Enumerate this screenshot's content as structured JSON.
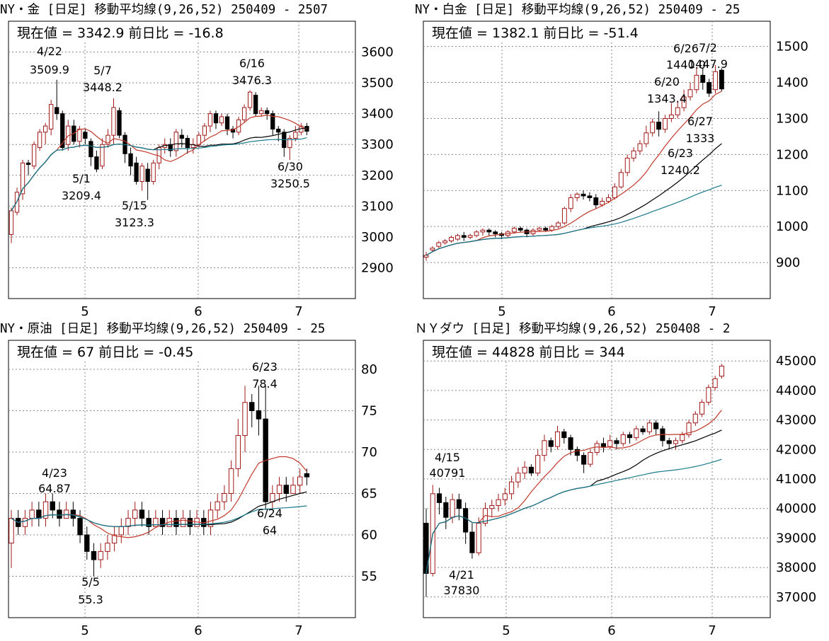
{
  "chart_data": [
    {
      "type": "candlestick",
      "header": "NY・金 [日足] 移動平均線(9,26,52)  250409 - 2507",
      "info": "現在値 = 3342.9  前日比 = -16.8",
      "months": [
        "5",
        "6",
        "7"
      ],
      "yticks": [
        2900,
        3000,
        3100,
        3200,
        3300,
        3400,
        3500,
        3600
      ],
      "ylim": [
        2800,
        3700
      ],
      "annotations": [
        {
          "date": "4/22",
          "value": "3509.9"
        },
        {
          "date": "5/7",
          "value": "3448.2"
        },
        {
          "date": "6/16",
          "value": "3476.3"
        },
        {
          "date": "5/1",
          "value": "3209.4"
        },
        {
          "date": "5/15",
          "value": "3123.3"
        },
        {
          "date": "6/30",
          "value": "3250.5"
        }
      ],
      "ma": {
        "colors": [
          "#c0392b",
          "#000000",
          "#1a7a8c"
        ]
      },
      "candles": [
        [
          3008,
          3085,
          2980,
          3095
        ],
        [
          3080,
          3145,
          3070,
          3160
        ],
        [
          3140,
          3240,
          3120,
          3250
        ],
        [
          3240,
          3235,
          3200,
          3250
        ],
        [
          3230,
          3300,
          3220,
          3310
        ],
        [
          3290,
          3340,
          3280,
          3350
        ],
        [
          3340,
          3360,
          3300,
          3370
        ],
        [
          3350,
          3430,
          3330,
          3445
        ],
        [
          3420,
          3400,
          3380,
          3510
        ],
        [
          3400,
          3290,
          3280,
          3410
        ],
        [
          3300,
          3360,
          3280,
          3380
        ],
        [
          3360,
          3310,
          3300,
          3380
        ],
        [
          3310,
          3350,
          3290,
          3360
        ],
        [
          3340,
          3320,
          3300,
          3350
        ],
        [
          3310,
          3260,
          3230,
          3320
        ],
        [
          3260,
          3220,
          3210,
          3280
        ],
        [
          3230,
          3300,
          3220,
          3320
        ],
        [
          3300,
          3330,
          3290,
          3350
        ],
        [
          3330,
          3420,
          3300,
          3450
        ],
        [
          3410,
          3330,
          3320,
          3420
        ],
        [
          3330,
          3270,
          3240,
          3340
        ],
        [
          3270,
          3230,
          3200,
          3290
        ],
        [
          3240,
          3180,
          3170,
          3260
        ],
        [
          3180,
          3230,
          3150,
          3240
        ],
        [
          3220,
          3180,
          3120,
          3240
        ],
        [
          3180,
          3240,
          3170,
          3250
        ],
        [
          3240,
          3290,
          3220,
          3300
        ],
        [
          3290,
          3300,
          3270,
          3320
        ],
        [
          3300,
          3280,
          3260,
          3320
        ],
        [
          3280,
          3340,
          3260,
          3350
        ],
        [
          3330,
          3320,
          3290,
          3350
        ],
        [
          3320,
          3290,
          3270,
          3330
        ],
        [
          3290,
          3300,
          3270,
          3320
        ],
        [
          3300,
          3330,
          3290,
          3340
        ],
        [
          3330,
          3360,
          3310,
          3370
        ],
        [
          3360,
          3400,
          3340,
          3410
        ],
        [
          3400,
          3370,
          3350,
          3410
        ],
        [
          3370,
          3390,
          3360,
          3400
        ],
        [
          3390,
          3350,
          3330,
          3400
        ],
        [
          3350,
          3340,
          3320,
          3360
        ],
        [
          3340,
          3380,
          3330,
          3390
        ],
        [
          3380,
          3420,
          3370,
          3430
        ],
        [
          3420,
          3470,
          3410,
          3476
        ],
        [
          3460,
          3400,
          3390,
          3470
        ],
        [
          3400,
          3410,
          3390,
          3420
        ],
        [
          3410,
          3400,
          3380,
          3420
        ],
        [
          3400,
          3350,
          3330,
          3410
        ],
        [
          3350,
          3340,
          3310,
          3360
        ],
        [
          3340,
          3290,
          3260,
          3350
        ],
        [
          3290,
          3320,
          3250,
          3330
        ],
        [
          3320,
          3340,
          3310,
          3360
        ],
        [
          3340,
          3360,
          3330,
          3370
        ],
        [
          3359,
          3343,
          3330,
          3370
        ]
      ]
    },
    {
      "type": "candlestick",
      "header": "NY・白金 [日足] 移動平均線(9,26,52)  250409 - 25",
      "info": "現在値 = 1382.1  前日比 = -51.4",
      "months": [
        "5",
        "6",
        "7"
      ],
      "yticks": [
        900,
        1000,
        1100,
        1200,
        1300,
        1400,
        1500
      ],
      "ylim": [
        800,
        1570
      ],
      "annotations": [
        {
          "date": "7/2",
          "value": "1447.9"
        },
        {
          "date": "6/26",
          "value": "1440.0"
        },
        {
          "date": "6/20",
          "value": "1343.4"
        },
        {
          "date": "6/27",
          "value": "1333"
        },
        {
          "date": "6/23",
          "value": "1240.2"
        }
      ],
      "ma": {
        "colors": [
          "#c0392b",
          "#000000",
          "#1a7a8c"
        ]
      },
      "candles": [
        [
          915,
          920,
          905,
          930
        ],
        [
          935,
          940,
          930,
          945
        ],
        [
          945,
          955,
          940,
          960
        ],
        [
          955,
          960,
          950,
          965
        ],
        [
          960,
          970,
          955,
          975
        ],
        [
          965,
          975,
          960,
          980
        ],
        [
          975,
          970,
          960,
          985
        ],
        [
          970,
          975,
          965,
          980
        ],
        [
          975,
          985,
          970,
          990
        ],
        [
          985,
          990,
          975,
          995
        ],
        [
          990,
          985,
          975,
          995
        ],
        [
          985,
          980,
          970,
          990
        ],
        [
          980,
          975,
          965,
          985
        ],
        [
          975,
          985,
          970,
          990
        ],
        [
          985,
          995,
          980,
          1000
        ],
        [
          995,
          990,
          985,
          1000
        ],
        [
          990,
          980,
          970,
          995
        ],
        [
          980,
          990,
          975,
          995
        ],
        [
          990,
          995,
          985,
          1000
        ],
        [
          995,
          990,
          985,
          1000
        ],
        [
          990,
          1000,
          985,
          1005
        ],
        [
          1000,
          1010,
          995,
          1015
        ],
        [
          1010,
          1050,
          1005,
          1055
        ],
        [
          1050,
          1080,
          1040,
          1090
        ],
        [
          1080,
          1090,
          1070,
          1095
        ],
        [
          1090,
          1085,
          1075,
          1100
        ],
        [
          1085,
          1080,
          1070,
          1095
        ],
        [
          1080,
          1060,
          1050,
          1090
        ],
        [
          1060,
          1070,
          1055,
          1080
        ],
        [
          1070,
          1080,
          1065,
          1090
        ],
        [
          1080,
          1110,
          1075,
          1120
        ],
        [
          1110,
          1150,
          1105,
          1160
        ],
        [
          1150,
          1190,
          1140,
          1200
        ],
        [
          1190,
          1210,
          1180,
          1220
        ],
        [
          1210,
          1230,
          1200,
          1240
        ],
        [
          1230,
          1260,
          1220,
          1280
        ],
        [
          1260,
          1290,
          1250,
          1300
        ],
        [
          1290,
          1270,
          1250,
          1320
        ],
        [
          1270,
          1300,
          1260,
          1310
        ],
        [
          1300,
          1310,
          1290,
          1343
        ],
        [
          1310,
          1330,
          1300,
          1350
        ],
        [
          1330,
          1360,
          1320,
          1380
        ],
        [
          1360,
          1380,
          1350,
          1400
        ],
        [
          1380,
          1420,
          1370,
          1440
        ],
        [
          1420,
          1400,
          1380,
          1440
        ],
        [
          1400,
          1370,
          1360,
          1410
        ],
        [
          1380,
          1430,
          1370,
          1448
        ],
        [
          1434,
          1382,
          1375,
          1440
        ]
      ]
    },
    {
      "type": "candlestick",
      "header": "NY・原油 [日足] 移動平均線(9,26,52)  250409 - 25",
      "info": "現在値 = 67  前日比 = -0.45",
      "months": [
        "5",
        "6",
        "7"
      ],
      "yticks": [
        55,
        60,
        65,
        70,
        75,
        80
      ],
      "ylim": [
        50,
        83.5
      ],
      "annotations": [
        {
          "date": "6/23",
          "value": "78.4"
        },
        {
          "date": "4/23",
          "value": "64.87"
        },
        {
          "date": "5/5",
          "value": "55.3"
        },
        {
          "date": "6/24",
          "value": "64"
        }
      ],
      "ma": {
        "colors": [
          "#c0392b",
          "#000000",
          "#1a7a8c"
        ]
      },
      "candles": [
        [
          59,
          62,
          56,
          63
        ],
        [
          62,
          61,
          60,
          63
        ],
        [
          61,
          62,
          60,
          63
        ],
        [
          62,
          63,
          61,
          64
        ],
        [
          63,
          62,
          61,
          64
        ],
        [
          62,
          64,
          61,
          65
        ],
        [
          64,
          63,
          62,
          65
        ],
        [
          63,
          62,
          61,
          64
        ],
        [
          62,
          63,
          62,
          64
        ],
        [
          63,
          62,
          61,
          64
        ],
        [
          62,
          60,
          59,
          63
        ],
        [
          60,
          58,
          57,
          61
        ],
        [
          58,
          57,
          55,
          59
        ],
        [
          57,
          58,
          56,
          59
        ],
        [
          58,
          59,
          57,
          60
        ],
        [
          59,
          60,
          58,
          61
        ],
        [
          60,
          61,
          59,
          62
        ],
        [
          61,
          62,
          60,
          63
        ],
        [
          62,
          63,
          61,
          64
        ],
        [
          63,
          62,
          61,
          64
        ],
        [
          62,
          61,
          60,
          63
        ],
        [
          61,
          62,
          61,
          63
        ],
        [
          62,
          61,
          60,
          63
        ],
        [
          61,
          62,
          61,
          63
        ],
        [
          62,
          61,
          60,
          63
        ],
        [
          61,
          62,
          61,
          63
        ],
        [
          62,
          61,
          60,
          63
        ],
        [
          61,
          62,
          61,
          63
        ],
        [
          62,
          61,
          60,
          63
        ],
        [
          61,
          63,
          60,
          64
        ],
        [
          63,
          64,
          62,
          65
        ],
        [
          64,
          65,
          63,
          66
        ],
        [
          65,
          68,
          64,
          69
        ],
        [
          68,
          72,
          67,
          74
        ],
        [
          72,
          76,
          70,
          78
        ],
        [
          76,
          75,
          73,
          77
        ],
        [
          75,
          74,
          72,
          78
        ],
        [
          74,
          64,
          63,
          78
        ],
        [
          64,
          65,
          63,
          66
        ],
        [
          65,
          66,
          64,
          67
        ],
        [
          66,
          65,
          64,
          67
        ],
        [
          65,
          66,
          65,
          67
        ],
        [
          66,
          67,
          65,
          68
        ],
        [
          67.4,
          67,
          66,
          68
        ]
      ]
    },
    {
      "type": "candlestick",
      "header": "ＮＹダウ [日足] 移動平均線(9,26,52)  250408 - 2",
      "info": "現在値 = 44828  前日比 = 344",
      "months": [
        "5",
        "6",
        "7"
      ],
      "yticks": [
        37000,
        38000,
        39000,
        40000,
        41000,
        42000,
        43000,
        44000,
        45000
      ],
      "ylim": [
        36300,
        45700
      ],
      "annotations": [
        {
          "date": "4/15",
          "value": "40791"
        },
        {
          "date": "4/21",
          "value": "37830"
        }
      ],
      "ma": {
        "colors": [
          "#c0392b",
          "#000000",
          "#1a7a8c"
        ]
      },
      "candles": [
        [
          39500,
          37800,
          37000,
          40000
        ],
        [
          37800,
          40500,
          37700,
          40800
        ],
        [
          40500,
          40200,
          39800,
          40700
        ],
        [
          40200,
          39700,
          39300,
          40400
        ],
        [
          39700,
          40300,
          39500,
          40500
        ],
        [
          40300,
          40000,
          39600,
          40500
        ],
        [
          40000,
          39200,
          38800,
          40200
        ],
        [
          39200,
          38500,
          38300,
          39500
        ],
        [
          38500,
          39500,
          38400,
          39700
        ],
        [
          39500,
          40000,
          39400,
          40200
        ],
        [
          40000,
          40100,
          39700,
          40300
        ],
        [
          40100,
          40300,
          39900,
          40500
        ],
        [
          40300,
          40500,
          40100,
          40700
        ],
        [
          40500,
          40900,
          40300,
          41100
        ],
        [
          40900,
          41200,
          40700,
          41400
        ],
        [
          41200,
          41400,
          41000,
          41600
        ],
        [
          41400,
          41200,
          41100,
          41500
        ],
        [
          41200,
          41800,
          41100,
          42000
        ],
        [
          41800,
          42300,
          41600,
          42500
        ],
        [
          42300,
          42100,
          41900,
          42400
        ],
        [
          42100,
          42600,
          42000,
          42800
        ],
        [
          42600,
          42400,
          42200,
          42700
        ],
        [
          42400,
          42000,
          41800,
          42500
        ],
        [
          42000,
          41800,
          41600,
          42100
        ],
        [
          41800,
          41500,
          41200,
          41900
        ],
        [
          41500,
          41900,
          41400,
          42000
        ],
        [
          41900,
          42200,
          41800,
          42300
        ],
        [
          42200,
          42100,
          41900,
          42400
        ],
        [
          42100,
          42300,
          42000,
          42500
        ],
        [
          42300,
          42200,
          42000,
          42400
        ],
        [
          42200,
          42500,
          42100,
          42600
        ],
        [
          42500,
          42400,
          42200,
          42600
        ],
        [
          42400,
          42700,
          42300,
          42800
        ],
        [
          42700,
          42600,
          42500,
          42800
        ],
        [
          42600,
          42900,
          42500,
          43000
        ],
        [
          42900,
          42700,
          42500,
          43000
        ],
        [
          42700,
          42300,
          42100,
          42800
        ],
        [
          42300,
          42200,
          42000,
          42400
        ],
        [
          42200,
          42300,
          42000,
          42400
        ],
        [
          42300,
          42500,
          42200,
          42600
        ],
        [
          42500,
          42900,
          42400,
          43000
        ],
        [
          42900,
          43200,
          42800,
          43300
        ],
        [
          43200,
          43600,
          43100,
          43700
        ],
        [
          43600,
          44100,
          43500,
          44200
        ],
        [
          44100,
          44400,
          44000,
          44500
        ],
        [
          44484,
          44828,
          44400,
          44900
        ]
      ]
    }
  ]
}
